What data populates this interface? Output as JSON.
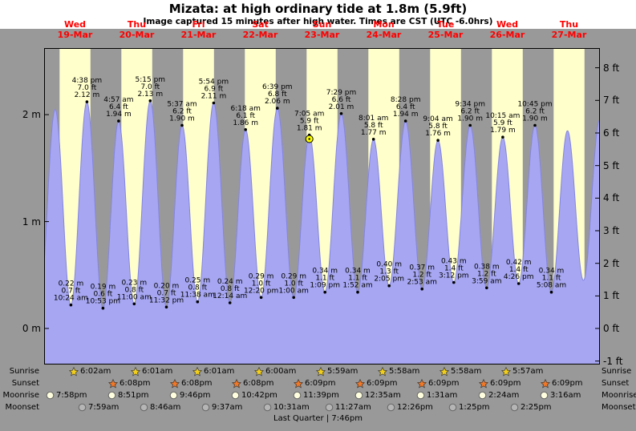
{
  "title": "Mizata: at high  ordinary tide at 1.8m (5.9ft)",
  "subtitle": "Image captured 15 minutes after high water. Times are CST (UTC -6.0hrs)",
  "colors": {
    "panel_bg": "#999999",
    "day_band": "#ffffcc",
    "tide_fill": "#a6a6f2",
    "tide_stroke": "#8585e0",
    "day_label": "#ff0000",
    "capture_marker": "#ffff00",
    "sunrise_star": "#f2cf1d",
    "sunset_star": "#f07828",
    "moonrise_circle": "#ffffdf",
    "moonset_circle": "#b5b5b5"
  },
  "chart_data": {
    "type": "area",
    "title": "Mizata tide curve, 19-Mar to 27-Mar",
    "x_range_hours": [
      0,
      216
    ],
    "x_unit": "hours since 00:00 Wed 19-Mar",
    "grid": false,
    "days": [
      {
        "dow": "Wed",
        "date": "19-Mar"
      },
      {
        "dow": "Thu",
        "date": "20-Mar"
      },
      {
        "dow": "Fri",
        "date": "21-Mar"
      },
      {
        "dow": "Sat",
        "date": "22-Mar"
      },
      {
        "dow": "Sun",
        "date": "23-Mar"
      },
      {
        "dow": "Mon",
        "date": "24-Mar"
      },
      {
        "dow": "Tue",
        "date": "25-Mar"
      },
      {
        "dow": "Wed",
        "date": "26-Mar"
      },
      {
        "dow": "Thu",
        "date": "27-Mar"
      }
    ],
    "y_axis_meters": [
      {
        "label": "2 m",
        "value": 2
      },
      {
        "label": "1 m",
        "value": 1
      },
      {
        "label": "0 m",
        "value": 0
      }
    ],
    "y_axis_feet": [
      {
        "label": "8 ft",
        "value": 8
      },
      {
        "label": "7 ft",
        "value": 7
      },
      {
        "label": "6 ft",
        "value": 6
      },
      {
        "label": "5 ft",
        "value": 5
      },
      {
        "label": "4 ft",
        "value": 4
      },
      {
        "label": "3 ft",
        "value": 3
      },
      {
        "label": "2 ft",
        "value": 2
      },
      {
        "label": "1 ft",
        "value": 1
      },
      {
        "label": "0 ft",
        "value": 0
      },
      {
        "label": "-1 ft",
        "value": -1
      }
    ],
    "extremes": [
      {
        "t": -1.9,
        "m": 0.2,
        "type": "low"
      },
      {
        "t": 4.3,
        "m": 2.05,
        "type": "high"
      },
      {
        "t": 10.4,
        "m": 0.22,
        "type": "low",
        "m_label": "0.22 m",
        "ft_label": "0.7 ft",
        "time": "10:24 am"
      },
      {
        "t": 16.63,
        "m": 2.12,
        "type": "high",
        "m_label": "2.12 m",
        "ft_label": "7.0 ft",
        "time": "4:38 pm"
      },
      {
        "t": 22.88,
        "m": 0.19,
        "type": "low",
        "m_label": "0.19 m",
        "ft_label": "0.6 ft",
        "time": "10:53 pm"
      },
      {
        "t": 28.95,
        "m": 1.94,
        "type": "high",
        "m_label": "1.94 m",
        "ft_label": "6.4 ft",
        "time": "4:57 am"
      },
      {
        "t": 35.0,
        "m": 0.23,
        "type": "low",
        "m_label": "0.23 m",
        "ft_label": "0.8 ft",
        "time": "11:00 am"
      },
      {
        "t": 41.25,
        "m": 2.13,
        "type": "high",
        "m_label": "2.13 m",
        "ft_label": "7.0 ft",
        "time": "5:15 pm"
      },
      {
        "t": 47.53,
        "m": 0.2,
        "type": "low",
        "m_label": "0.20 m",
        "ft_label": "0.7 ft",
        "time": "11:32 pm"
      },
      {
        "t": 53.62,
        "m": 1.9,
        "type": "high",
        "m_label": "1.90 m",
        "ft_label": "6.2 ft",
        "time": "5:37 am"
      },
      {
        "t": 59.63,
        "m": 0.25,
        "type": "low",
        "m_label": "0.25 m",
        "ft_label": "0.8 ft",
        "time": "11:38 am"
      },
      {
        "t": 65.9,
        "m": 2.11,
        "type": "high",
        "m_label": "2.11 m",
        "ft_label": "6.9 ft",
        "time": "5:54 pm"
      },
      {
        "t": 72.23,
        "m": 0.24,
        "type": "low",
        "m_label": "0.24 m",
        "ft_label": "0.8 ft",
        "time": "12:14 am"
      },
      {
        "t": 78.3,
        "m": 1.86,
        "type": "high",
        "m_label": "1.86 m",
        "ft_label": "6.1 ft",
        "time": "6:18 am"
      },
      {
        "t": 84.33,
        "m": 0.29,
        "type": "low",
        "m_label": "0.29 m",
        "ft_label": "1.0 ft",
        "time": "12:20 pm"
      },
      {
        "t": 90.65,
        "m": 2.06,
        "type": "high",
        "m_label": "2.06 m",
        "ft_label": "6.8 ft",
        "time": "6:39 pm"
      },
      {
        "t": 97.0,
        "m": 0.29,
        "type": "low",
        "m_label": "0.29 m",
        "ft_label": "1.0 ft",
        "time": "1:00 am"
      },
      {
        "t": 103.08,
        "m": 1.81,
        "type": "high",
        "m_label": "1.81 m",
        "ft_label": "5.9 ft",
        "time": "7:05 am",
        "capture": true
      },
      {
        "t": 109.15,
        "m": 0.34,
        "type": "low",
        "m_label": "0.34 m",
        "ft_label": "1.1 ft",
        "time": "1:09 pm"
      },
      {
        "t": 115.48,
        "m": 2.01,
        "type": "high",
        "m_label": "2.01 m",
        "ft_label": "6.6 ft",
        "time": "7:29 pm"
      },
      {
        "t": 121.87,
        "m": 0.34,
        "type": "low",
        "m_label": "0.34 m",
        "ft_label": "1.1 ft",
        "time": "1:52 am"
      },
      {
        "t": 128.02,
        "m": 1.77,
        "type": "high",
        "m_label": "1.77 m",
        "ft_label": "5.8 ft",
        "time": "8:01 am"
      },
      {
        "t": 134.08,
        "m": 0.4,
        "type": "low",
        "m_label": "0.40 m",
        "ft_label": "1.3 ft",
        "time": "2:05 pm"
      },
      {
        "t": 140.47,
        "m": 1.94,
        "type": "high",
        "m_label": "1.94 m",
        "ft_label": "6.4 ft",
        "time": "8:28 pm"
      },
      {
        "t": 146.88,
        "m": 0.37,
        "type": "low",
        "m_label": "0.37 m",
        "ft_label": "1.2 ft",
        "time": "2:53 am"
      },
      {
        "t": 153.07,
        "m": 1.76,
        "type": "high",
        "m_label": "1.76 m",
        "ft_label": "5.8 ft",
        "time": "9:04 am"
      },
      {
        "t": 159.2,
        "m": 0.43,
        "type": "low",
        "m_label": "0.43 m",
        "ft_label": "1.4 ft",
        "time": "3:12 pm"
      },
      {
        "t": 165.57,
        "m": 1.9,
        "type": "high",
        "m_label": "1.90 m",
        "ft_label": "6.2 ft",
        "time": "9:34 pm"
      },
      {
        "t": 171.98,
        "m": 0.38,
        "type": "low",
        "m_label": "0.38 m",
        "ft_label": "1.2 ft",
        "time": "3:59 am"
      },
      {
        "t": 178.25,
        "m": 1.79,
        "type": "high",
        "m_label": "1.79 m",
        "ft_label": "5.9 ft",
        "time": "10:15 am"
      },
      {
        "t": 184.43,
        "m": 0.42,
        "type": "low",
        "m_label": "0.42 m",
        "ft_label": "1.4 ft",
        "time": "4:26 pm"
      },
      {
        "t": 190.75,
        "m": 1.9,
        "type": "high",
        "m_label": "1.90 m",
        "ft_label": "6.2 ft",
        "time": "10:45 pm"
      },
      {
        "t": 197.13,
        "m": 0.34,
        "type": "low",
        "m_label": "0.34 m",
        "ft_label": "1.1 ft",
        "time": "5:08 am"
      },
      {
        "t": 203.4,
        "m": 1.85,
        "type": "high"
      },
      {
        "t": 209.6,
        "m": 0.45,
        "type": "low"
      },
      {
        "t": 215.9,
        "m": 1.95,
        "type": "high"
      }
    ],
    "capture_marker_time": "7:05 am"
  },
  "astro": {
    "rows": [
      {
        "key": "sunrise",
        "label": "Sunrise",
        "entries": [
          "6:02am",
          "6:01am",
          "6:01am",
          "6:00am",
          "5:59am",
          "5:58am",
          "5:58am",
          "5:57am"
        ]
      },
      {
        "key": "sunset",
        "label": "Sunset",
        "entries": [
          "6:08pm",
          "6:08pm",
          "6:08pm",
          "6:09pm",
          "6:09pm",
          "6:09pm",
          "6:09pm",
          "6:09pm"
        ]
      },
      {
        "key": "moonrise",
        "label": "Moonrise",
        "entries": [
          "7:58pm",
          "8:51pm",
          "9:46pm",
          "10:42pm",
          "11:39pm",
          "12:35am",
          "1:31am",
          "2:24am",
          "3:16am"
        ]
      },
      {
        "key": "moonset",
        "label": "Moonset",
        "entries": [
          "7:59am",
          "8:46am",
          "9:37am",
          "10:31am",
          "11:27am",
          "12:26pm",
          "1:25pm",
          "2:25pm"
        ]
      }
    ],
    "footer": "Last Quarter | 7:46pm"
  }
}
